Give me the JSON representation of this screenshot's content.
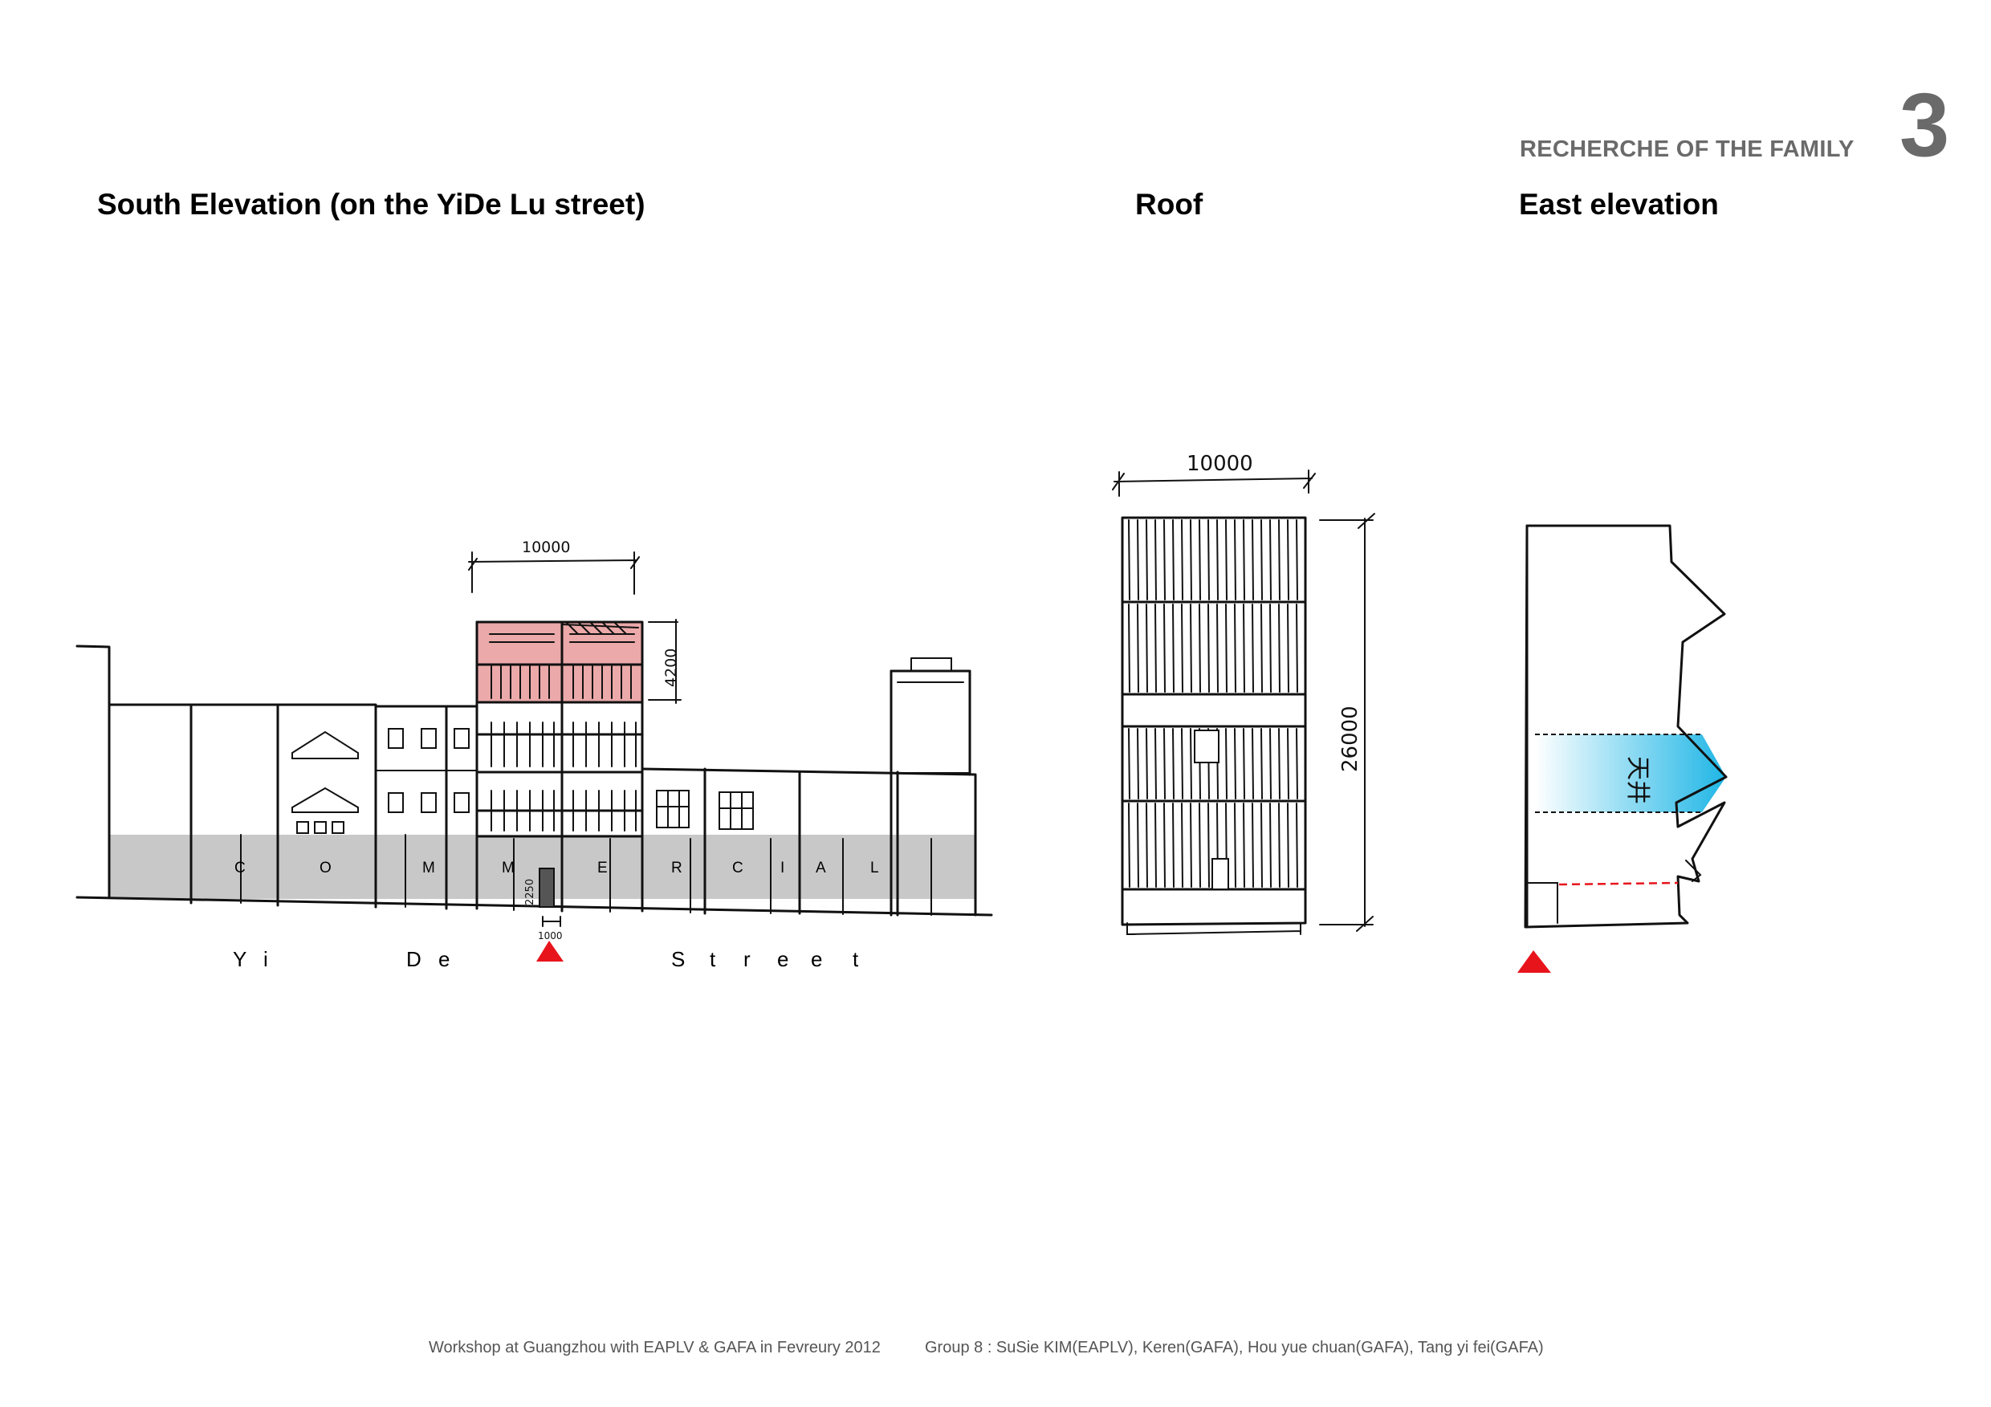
{
  "header": {
    "section_label": "RECHERCHE OF THE FAMILY",
    "page_number": "3"
  },
  "titles": {
    "south_elevation": "South Elevation (on the YiDe Lu street)",
    "roof": "Roof",
    "east_elevation": "East elevation"
  },
  "south_elevation": {
    "dimension_width": "10000",
    "dimension_height": "4200",
    "door_height": "2250",
    "door_width": "1000",
    "ground_floor_letters": [
      "C",
      "O",
      "M",
      "M",
      "E",
      "R",
      "C",
      "I",
      "A",
      "L"
    ],
    "street_letters": [
      "Y",
      "i",
      "D",
      "e",
      "S",
      "t",
      "r",
      "e",
      "e",
      "t"
    ]
  },
  "roof": {
    "dimension_width": "10000",
    "dimension_length": "26000"
  },
  "east_elevation": {
    "courtyard_label": "天井"
  },
  "colors": {
    "highlight_red": "#e89a9a",
    "marker_red": "#e8141c",
    "courtyard_cyan": "#1fb6e6",
    "ground_gray": "#c8c8c8",
    "header_gray": "#6a6a6a"
  },
  "footer": {
    "workshop": "Workshop at Guangzhou with EAPLV & GAFA in Fevreury 2012",
    "group": "Group 8 : SuSie KIM(EAPLV), Keren(GAFA), Hou yue chuan(GAFA), Tang yi fei(GAFA)"
  }
}
